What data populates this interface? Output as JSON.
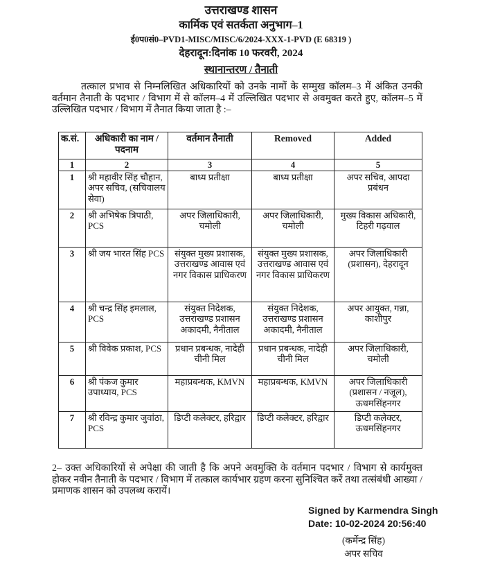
{
  "header": {
    "government": "उत्तराखण्ड शासन",
    "department": "कार्मिक एवं सतर्कता अनुभाग–1",
    "file_number": "ई0प0सं0–PVD1-MISC/MISC/6/2024-XXX-1-PVD (E 68319 )",
    "place_date": "देहरादून:दिनांक 10 फरवरी, 2024",
    "subject": "स्थानान्तरण / तैनाती"
  },
  "intro": "तत्काल प्रभाव से निम्नलिखित अधिकारियों को उनके नामों के सम्मुख कॉलम–3 में अंकित उनकी वर्तमान तैनाती के पदभार / विभाग में से कॉलम–4 में उल्लिखित पदभार से अवमुक्त करते हुए, कॉलम–5 में उल्लिखित पदभार / विभाग में तैनात किया जाता है :–",
  "table": {
    "headers": [
      "क.सं.",
      "अधिकारी का नाम / पदनाम",
      "वर्तमान तैनाती",
      "Removed",
      "Added"
    ],
    "column_numbers": [
      "1",
      "2",
      "3",
      "4",
      "5"
    ],
    "rows": [
      [
        "1",
        "श्री महावीर सिंह चौहान, अपर सचिव, (सचिवालय सेवा)",
        "बाध्य प्रतीक्षा",
        "बाध्य प्रतीक्षा",
        "अपर सचिव, आपदा प्रबंधन"
      ],
      [
        "2",
        "श्री अभिषेक त्रिपाठी, PCS",
        "अपर जिलाधिकारी, चमोली",
        "अपर जिलाधिकारी, चमोली",
        "मुख्य विकास अधिकारी, टिहरी गढ़वाल"
      ],
      [
        "3",
        "श्री जय भारत सिंह PCS",
        "संयुक्त मुख्य प्रशासक, उत्तराखण्ड आवास एवं नगर विकास प्राधिकरण",
        "संयुक्त मुख्य प्रशासक, उत्तराखण्ड आवास एवं नगर विकास प्राधिकरण",
        "अपर जिलाधिकारी (प्रशासन), देहरादून"
      ],
      [
        "4",
        "श्री चन्द्र सिंह इमलाल, PCS",
        "संयुक्त निदेशक, उत्तराखण्ड प्रशासन अकादमी, नैनीताल",
        "संयुक्त निदेशक, उत्तराखण्ड प्रशासन अकादमी, नैनीताल",
        "अपर आयुक्त, गन्ना, काशीपुर"
      ],
      [
        "5",
        "श्री विवेक प्रकाश, PCS",
        "प्रधान प्रबन्धक, नादेही चीनी मिल",
        "प्रधान प्रबन्धक, नादेही चीनी मिल",
        "अपर जिलाधिकारी, चमोली"
      ],
      [
        "6",
        "श्री पंकज कुमार उपाध्याय, PCS",
        "महाप्रबन्धक, KMVN",
        "महाप्रबन्धक, KMVN",
        "अपर जिलाधिकारी (प्रशासन / नजूल), ऊधमसिंहनगर"
      ],
      [
        "7",
        "श्री रविन्द्र कुमार जुवांठा, PCS",
        "डिप्टी कलेक्टर, हरिद्वार",
        "डिप्टी कलेक्टर, हरिद्वार",
        "डिप्टी कलेक्टर, ऊधमसिंहनगर"
      ]
    ]
  },
  "para2": "2–      उक्त अधिकारियों से अपेक्षा की जाती है कि अपने अवमुक्ति के वर्तमान पदभार / विभाग से कार्यमुक्त होकर नवीन तैनाती के पदभार / विभाग में तत्काल कार्यभार ग्रहण करना सुनिश्चित करें तथा तत्संबंधी आख्या / प्रमाणक शासन को उपलब्ध करायें।",
  "signature": {
    "signed_by": "Signed by Karmendra Singh",
    "date": "Date: 10-02-2024 20:56:40",
    "name": "(कर्मेन्द्र सिंह)",
    "designation": "अपर सचिव"
  }
}
